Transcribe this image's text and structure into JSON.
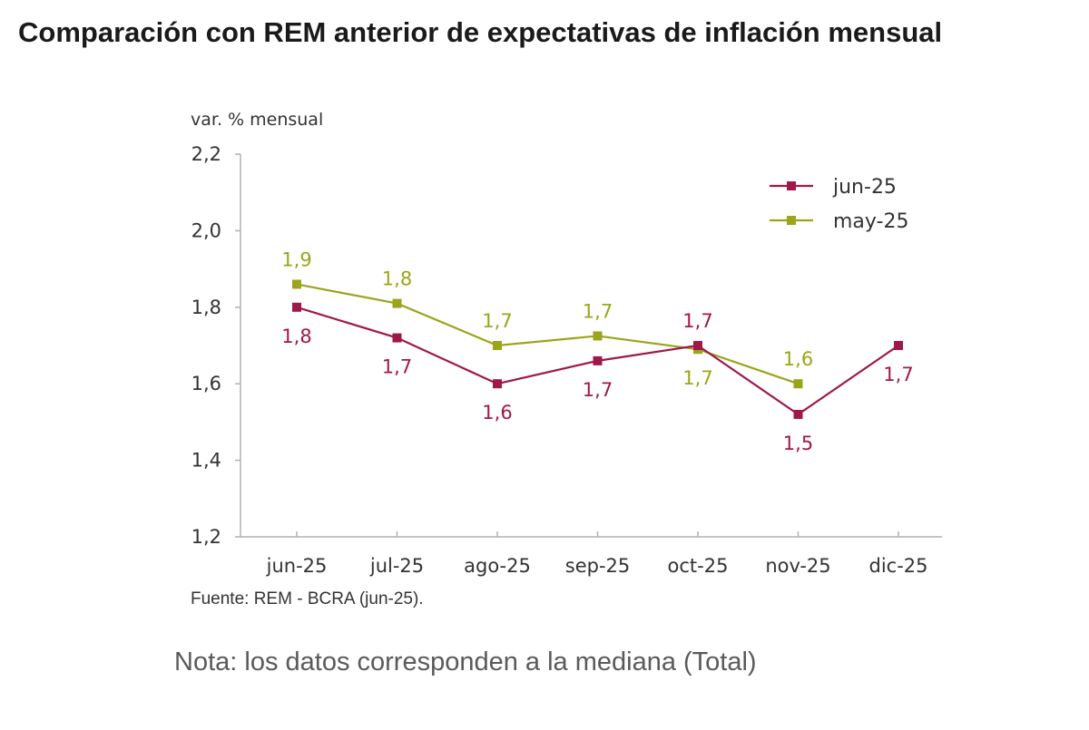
{
  "title": "Comparación con REM anterior de expectativas de inflación mensual",
  "source": "Fuente: REM - BCRA (jun-25).",
  "note": "Nota: los datos corresponden a la mediana (Total)",
  "colors": {
    "jun": "#a0184a",
    "may": "#9aa51a",
    "axis": "#b0b0b0",
    "text": "#333333"
  },
  "chart_data": {
    "type": "line",
    "title": "Comparación con REM anterior de expectativas de inflación mensual",
    "ylabel": "var. % mensual",
    "xlabel": "",
    "ylim": [
      1.2,
      2.2
    ],
    "yticks": [
      2.2,
      2.0,
      1.8,
      1.6,
      1.4,
      1.2
    ],
    "ytick_labels": [
      "2,2",
      "2,0",
      "1,8",
      "1,6",
      "1,4",
      "1,2"
    ],
    "categories": [
      "jun-25",
      "jul-25",
      "ago-25",
      "sep-25",
      "oct-25",
      "nov-25",
      "dic-25"
    ],
    "legend_position": "top-right",
    "grid": false,
    "series": [
      {
        "name": "jun-25",
        "color": "#a0184a",
        "values": [
          1.8,
          1.72,
          1.6,
          1.66,
          1.7,
          1.52,
          1.7
        ],
        "labels": [
          "1,8",
          "1,7",
          "1,6",
          "1,7",
          "1,7",
          "1,5",
          "1,7"
        ],
        "label_side": [
          "below",
          "below",
          "below",
          "below",
          "above",
          "below",
          "below"
        ]
      },
      {
        "name": "may-25",
        "color": "#9aa51a",
        "values": [
          1.86,
          1.81,
          1.7,
          1.725,
          1.69,
          1.6,
          null
        ],
        "labels": [
          "1,9",
          "1,8",
          "1,7",
          "1,7",
          "1,7",
          "1,6",
          null
        ],
        "label_side": [
          "above",
          "above",
          "above",
          "above",
          "below",
          "above",
          null
        ]
      }
    ]
  }
}
